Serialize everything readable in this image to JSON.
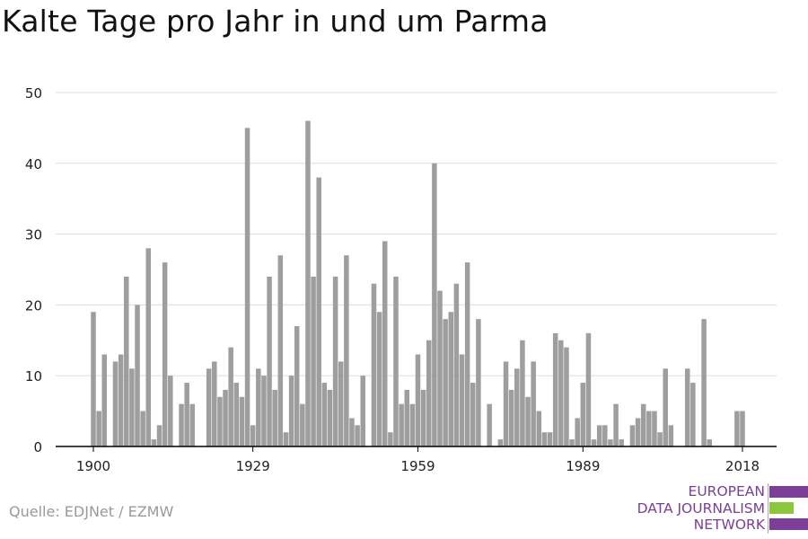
{
  "title": "Kalte Tage pro Jahr in und um Parma",
  "source": "Quelle: EDJNet / EZMW",
  "logo": {
    "lines": [
      "EUROPEAN",
      "DATA JOURNALISM",
      "NETWORK"
    ],
    "colors": {
      "text": "#7b3f98",
      "purple": "#7b3f98",
      "green": "#8cc63f"
    }
  },
  "colors": {
    "bar": "#9e9e9e",
    "grid": "#dddddd",
    "axis": "#000000"
  },
  "chart_data": {
    "type": "bar",
    "title": "Kalte Tage pro Jahr in und um Parma",
    "xlabel": "",
    "ylabel": "",
    "x_ticks": [
      1900,
      1929,
      1959,
      1989,
      2018
    ],
    "y_ticks": [
      0,
      10,
      20,
      30,
      40,
      50
    ],
    "xlim": [
      1900,
      2018
    ],
    "ylim": [
      0,
      50
    ],
    "grid": true,
    "x": [
      1900,
      1901,
      1902,
      1903,
      1904,
      1905,
      1906,
      1907,
      1908,
      1909,
      1910,
      1911,
      1912,
      1913,
      1914,
      1915,
      1916,
      1917,
      1918,
      1919,
      1920,
      1921,
      1922,
      1923,
      1924,
      1925,
      1926,
      1927,
      1928,
      1929,
      1930,
      1931,
      1932,
      1933,
      1934,
      1935,
      1936,
      1937,
      1938,
      1939,
      1940,
      1941,
      1942,
      1943,
      1944,
      1945,
      1946,
      1947,
      1948,
      1949,
      1950,
      1951,
      1952,
      1953,
      1954,
      1955,
      1956,
      1957,
      1958,
      1959,
      1960,
      1961,
      1962,
      1963,
      1964,
      1965,
      1966,
      1967,
      1968,
      1969,
      1970,
      1971,
      1972,
      1973,
      1974,
      1975,
      1976,
      1977,
      1978,
      1979,
      1980,
      1981,
      1982,
      1983,
      1984,
      1985,
      1986,
      1987,
      1988,
      1989,
      1990,
      1991,
      1992,
      1993,
      1994,
      1995,
      1996,
      1997,
      1998,
      1999,
      2000,
      2001,
      2002,
      2003,
      2004,
      2005,
      2006,
      2007,
      2008,
      2009,
      2010,
      2011,
      2012,
      2013,
      2014,
      2015,
      2016,
      2017,
      2018
    ],
    "values": [
      19,
      5,
      13,
      0,
      12,
      13,
      24,
      11,
      20,
      5,
      28,
      1,
      3,
      26,
      10,
      0,
      6,
      9,
      6,
      0,
      0,
      11,
      12,
      7,
      8,
      14,
      9,
      7,
      45,
      3,
      11,
      10,
      24,
      8,
      27,
      2,
      10,
      17,
      6,
      46,
      24,
      38,
      9,
      8,
      24,
      12,
      27,
      4,
      3,
      10,
      0,
      23,
      19,
      29,
      2,
      24,
      6,
      8,
      6,
      13,
      8,
      15,
      40,
      22,
      18,
      19,
      23,
      13,
      26,
      9,
      18,
      0,
      6,
      0,
      1,
      12,
      8,
      11,
      15,
      7,
      12,
      5,
      2,
      2,
      16,
      15,
      14,
      1,
      4,
      9,
      16,
      1,
      3,
      3,
      1,
      6,
      1,
      0,
      3,
      4,
      6,
      5,
      5,
      2,
      11,
      3,
      0,
      0,
      11,
      9,
      0,
      18,
      1,
      0,
      0,
      0,
      0,
      5,
      5
    ]
  }
}
